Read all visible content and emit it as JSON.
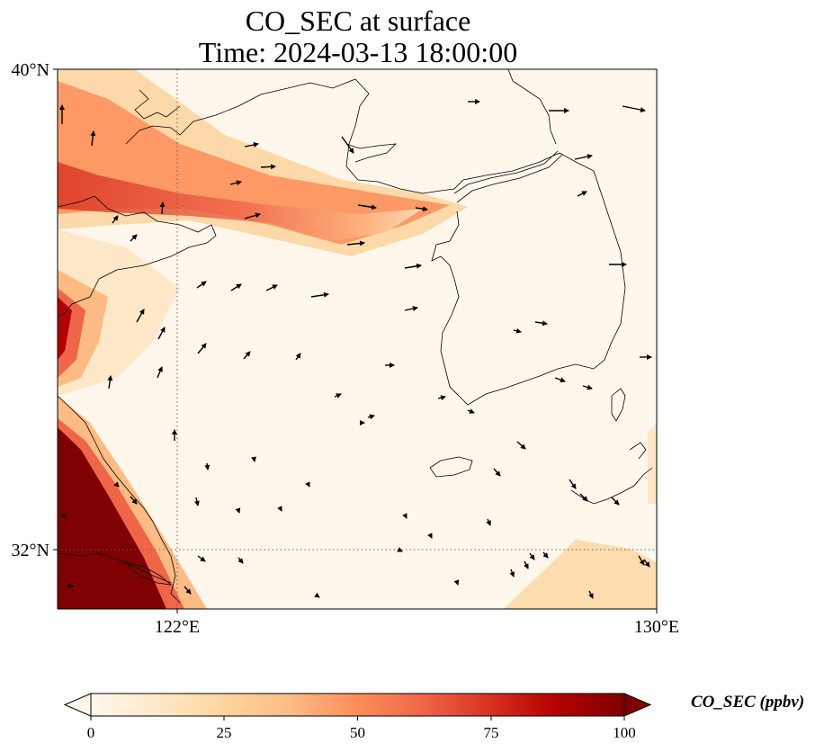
{
  "title": {
    "line1": "CO_SEC at surface",
    "line2": "Time: 2024-03-13 18:00:00"
  },
  "map": {
    "lon_range": [
      120,
      130
    ],
    "lat_range": [
      31,
      40
    ],
    "lat_ticks": [
      {
        "value": 40,
        "label": "40°N"
      },
      {
        "value": 32,
        "label": "32°N"
      }
    ],
    "lon_ticks": [
      {
        "value": 122,
        "label": "122°E"
      },
      {
        "value": 130,
        "label": "130°E"
      }
    ],
    "gridlines": {
      "lon": 122,
      "lat": 32,
      "style": "dotted"
    },
    "field_colormap": "OrRd-like (white to dark red)",
    "wind_vectors": true
  },
  "colorbar": {
    "label": "CO_SEC (ppbv)",
    "min": 0,
    "max": 100,
    "extend": "both",
    "ticks": [
      "0",
      "25",
      "50",
      "75",
      "100"
    ],
    "colors": [
      "#fff7ec",
      "#fee8c8",
      "#fdd49e",
      "#fdbb84",
      "#fc8d59",
      "#ef6548",
      "#d7301f",
      "#b30000",
      "#7f0000"
    ]
  }
}
